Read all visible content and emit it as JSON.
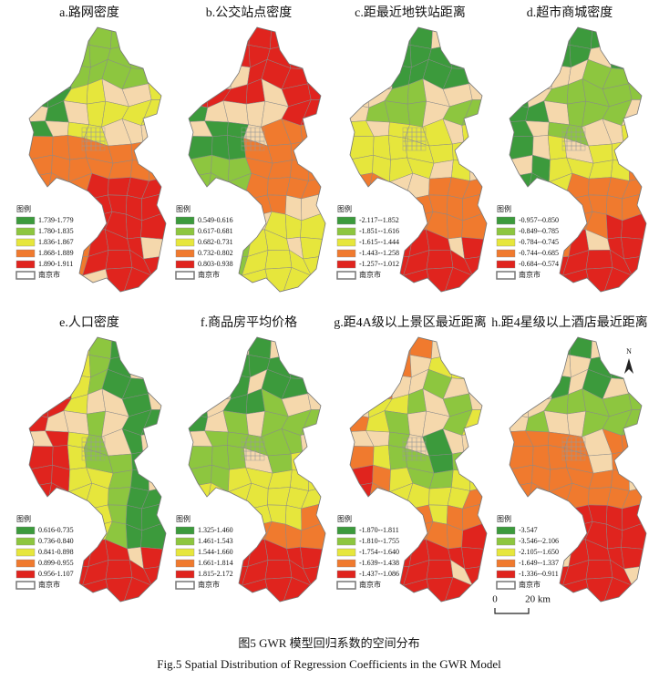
{
  "panels": [
    {
      "title": "a.路网密度",
      "legend_title": "图例",
      "legend": [
        "1.739-1.779",
        "1.780-1.835",
        "1.836-1.867",
        "1.868-1.889",
        "1.890-1.911"
      ],
      "boundary_label": "南京市"
    },
    {
      "title": "b.公交站点密度",
      "legend_title": "图例",
      "legend": [
        "0.549-0.616",
        "0.617-0.681",
        "0.682-0.731",
        "0.732-0.802",
        "0.803-0.938"
      ],
      "boundary_label": "南京市"
    },
    {
      "title": "c.距最近地铁站距离",
      "legend_title": "图例",
      "legend": [
        "-2.117--1.852",
        "-1.851--1.616",
        "-1.615--1.444",
        "-1.443--1.258",
        "-1.257--1.012"
      ],
      "boundary_label": "南京市"
    },
    {
      "title": "d.超市商城密度",
      "legend_title": "图例",
      "legend": [
        "-0.957--0.850",
        "-0.849--0.785",
        "-0.784--0.745",
        "-0.744--0.685",
        "-0.684--0.574"
      ],
      "boundary_label": "南京市"
    },
    {
      "title": "e.人口密度",
      "legend_title": "图例",
      "legend": [
        "0.616-0.735",
        "0.736-0.840",
        "0.841-0.898",
        "0.899-0.955",
        "0.956-1.107"
      ],
      "boundary_label": "南京市"
    },
    {
      "title": "f.商品房平均价格",
      "legend_title": "图例",
      "legend": [
        "1.325-1.460",
        "1.461-1.543",
        "1.544-1.660",
        "1.661-1.814",
        "1.815-2.172"
      ],
      "boundary_label": "南京市"
    },
    {
      "title": "g.距4A级以上景区最近距离",
      "legend_title": "图例",
      "legend": [
        "-1.870--1.811",
        "-1.810--1.755",
        "-1.754--1.640",
        "-1.639--1.438",
        "-1.437--1.086"
      ],
      "boundary_label": "南京市"
    },
    {
      "title": "h.距4星级以上酒店最近距离",
      "legend_title": "图例",
      "legend": [
        "-3.547",
        "-3.546--2.106",
        "-2.105--1.650",
        "-1.649--1.337",
        "-1.336--0.911"
      ],
      "boundary_label": "南京市"
    }
  ],
  "legend_colors": [
    "#3c9a3c",
    "#8dc63f",
    "#e6e63c",
    "#f07a2e",
    "#e0241e"
  ],
  "na_color": "#f5d8ac",
  "north": "N",
  "scale": {
    "start": "0",
    "end": "20 km"
  },
  "caption": {
    "zh": "图5  GWR 模型回归系数的空间分布",
    "en": "Fig.5 Spatial Distribution of Regression Coefficients in the GWR Model"
  }
}
